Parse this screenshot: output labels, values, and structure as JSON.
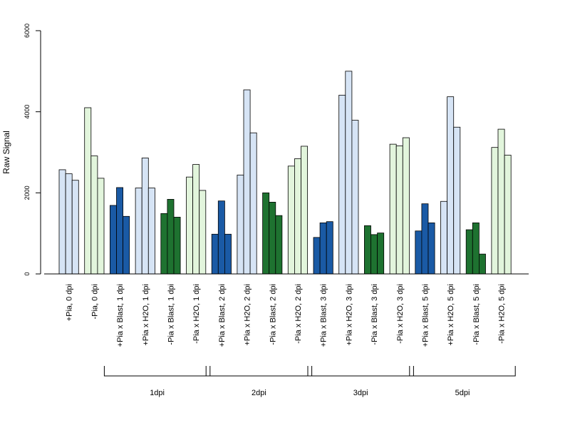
{
  "chart_data": {
    "type": "bar",
    "title": "",
    "xlabel": "",
    "ylabel": "Raw Signal",
    "ylim": [
      0,
      6000
    ],
    "yticks": [
      0,
      2000,
      4000,
      6000
    ],
    "categories": [
      "+Pia, 0 dpi",
      "-Pia, 0 dpi",
      "+Pia x Blast, 1 dpi",
      "+Pia x H2O, 1 dpi",
      "-Pia x Blast, 1 dpi",
      "-Pia x H2O, 1 dpi",
      "+Pia x Blast, 2 dpi",
      "+Pia x H2O, 2 dpi",
      "-Pia x Blast, 2 dpi",
      "-Pia x H2O, 2 dpi",
      "+Pia x Blast, 3 dpi",
      "+Pia x H2O, 3 dpi",
      "-Pia x Blast, 3 dpi",
      "-Pia x H2O, 3 dpi",
      "+Pia x Blast, 5 dpi",
      "+Pia x H2O, 5 dpi",
      "-Pia x Blast, 5 dpi",
      "-Pia x H2O, 5 dpi"
    ],
    "group_colors": [
      "#d6e4f5",
      "#e2f5dc",
      "#1a5aa5",
      "#d6e4f5",
      "#1e7230",
      "#e2f5dc",
      "#1a5aa5",
      "#d6e4f5",
      "#1e7230",
      "#e2f5dc",
      "#1a5aa5",
      "#d6e4f5",
      "#1e7230",
      "#e2f5dc",
      "#1a5aa5",
      "#d6e4f5",
      "#1e7230",
      "#e2f5dc"
    ],
    "replicates": [
      [
        2570,
        2470,
        2310
      ],
      [
        4100,
        2910,
        2360
      ],
      [
        1690,
        2130,
        1420
      ],
      [
        2120,
        2860,
        2120
      ],
      [
        1490,
        1840,
        1400
      ],
      [
        2390,
        2700,
        2060
      ],
      [
        980,
        1800,
        980
      ],
      [
        2440,
        4540,
        3480
      ],
      [
        2000,
        1770,
        1440
      ],
      [
        2660,
        2840,
        3150
      ],
      [
        900,
        1260,
        1290
      ],
      [
        4410,
        5000,
        3790
      ],
      [
        1190,
        970,
        1010
      ],
      [
        3200,
        3160,
        3360
      ],
      [
        1060,
        1730,
        1260
      ],
      [
        1790,
        4370,
        3620
      ],
      [
        1090,
        1260,
        490
      ],
      [
        3120,
        3570,
        2930
      ]
    ],
    "groups": [
      {
        "label": "1dpi",
        "from": 2,
        "to": 5
      },
      {
        "label": "2dpi",
        "from": 6,
        "to": 9
      },
      {
        "label": "3dpi",
        "from": 10,
        "to": 13
      },
      {
        "label": "5dpi",
        "from": 14,
        "to": 17
      }
    ],
    "grid": false,
    "legend": "none"
  }
}
